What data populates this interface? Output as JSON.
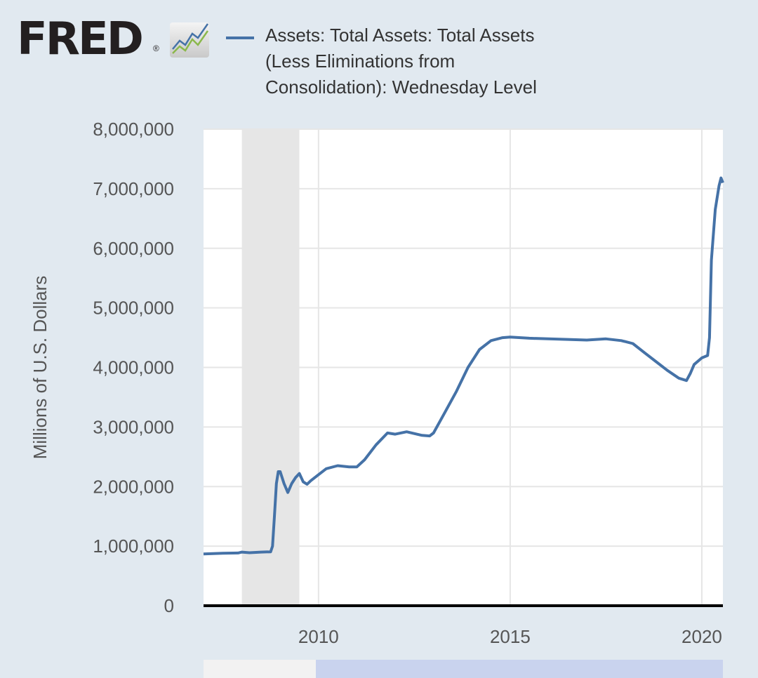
{
  "brand": {
    "logo_text": "FRED",
    "registered_mark": "®",
    "icon": "trend-line-chart-icon"
  },
  "colors": {
    "series": "#4572a7",
    "recession_band": "#e6e6e6",
    "background": "#e1e9f0",
    "plot_background": "#ffffff",
    "grid": "#e6e6e6",
    "axis_line": "#000000",
    "navigator_window": "#c9d3ee"
  },
  "chart_data": {
    "type": "line",
    "title": "",
    "xlabel": "",
    "ylabel": "Millions of U.S. Dollars",
    "xlim": [
      2007.0,
      2020.55
    ],
    "ylim": [
      0,
      8000000
    ],
    "grid": true,
    "legend_placement": "top",
    "x_ticks": [
      2010,
      2015,
      2020
    ],
    "x_tick_labels": [
      "2010",
      "2015",
      "2020"
    ],
    "y_ticks": [
      0,
      1000000,
      2000000,
      3000000,
      4000000,
      5000000,
      6000000,
      7000000,
      8000000
    ],
    "y_tick_labels": [
      "0",
      "1,000,000",
      "2,000,000",
      "3,000,000",
      "4,000,000",
      "5,000,000",
      "6,000,000",
      "7,000,000",
      "8,000,000"
    ],
    "recession_shading": [
      [
        2008.0,
        2009.5
      ]
    ],
    "series": [
      {
        "name": "Assets: Total Assets: Total Assets (Less Eliminations from Consolidation): Wednesday Level",
        "x": [
          2007.0,
          2007.5,
          2007.9,
          2008.0,
          2008.2,
          2008.5,
          2008.75,
          2008.8,
          2008.85,
          2008.9,
          2008.95,
          2009.0,
          2009.1,
          2009.2,
          2009.3,
          2009.4,
          2009.5,
          2009.6,
          2009.7,
          2009.8,
          2010.0,
          2010.2,
          2010.5,
          2010.8,
          2011.0,
          2011.2,
          2011.5,
          2011.8,
          2012.0,
          2012.3,
          2012.7,
          2012.9,
          2013.0,
          2013.3,
          2013.6,
          2013.9,
          2014.2,
          2014.5,
          2014.8,
          2015.0,
          2015.5,
          2016.0,
          2016.5,
          2017.0,
          2017.5,
          2017.9,
          2018.2,
          2018.5,
          2018.8,
          2019.1,
          2019.4,
          2019.6,
          2019.7,
          2019.8,
          2020.0,
          2020.15,
          2020.2,
          2020.25,
          2020.35,
          2020.45,
          2020.5,
          2020.55
        ],
        "values": [
          870000,
          880000,
          885000,
          900000,
          890000,
          900000,
          905000,
          1000000,
          1500000,
          2050000,
          2250000,
          2250000,
          2050000,
          1900000,
          2050000,
          2150000,
          2220000,
          2080000,
          2040000,
          2100000,
          2200000,
          2300000,
          2350000,
          2330000,
          2330000,
          2450000,
          2700000,
          2900000,
          2880000,
          2920000,
          2860000,
          2850000,
          2900000,
          3250000,
          3600000,
          4000000,
          4300000,
          4450000,
          4500000,
          4510000,
          4490000,
          4480000,
          4470000,
          4460000,
          4480000,
          4450000,
          4400000,
          4250000,
          4100000,
          3950000,
          3820000,
          3780000,
          3900000,
          4050000,
          4160000,
          4200000,
          4500000,
          5800000,
          6650000,
          7050000,
          7180000,
          7100000
        ]
      }
    ]
  }
}
